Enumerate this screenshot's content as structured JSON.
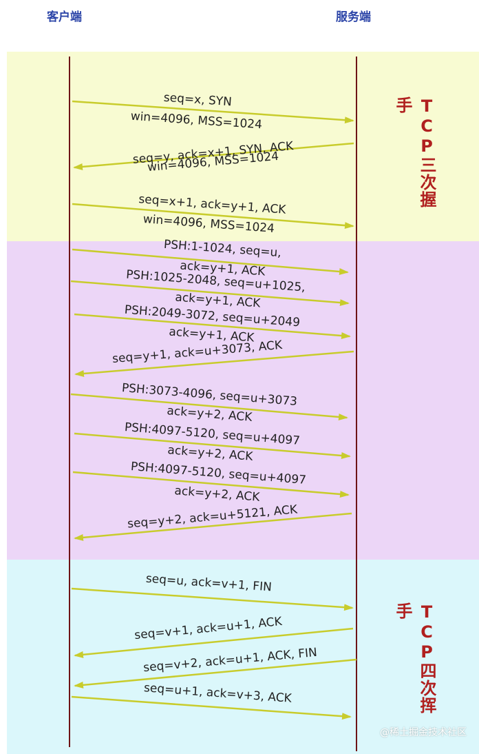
{
  "header": {
    "client_label": "客户端",
    "server_label": "服务端"
  },
  "colors": {
    "header_text": "#2c45a8",
    "title_text": "#b0201f",
    "lifeline": "#6e1416",
    "arrow": "#c8cc2c",
    "section_handshake": "#f8fbd2",
    "section_data": "#ecd6f7",
    "section_teardown": "#dbf7fb"
  },
  "sections": [
    {
      "id": "handshake",
      "title": "TCP三次握手"
    },
    {
      "id": "data",
      "title": ""
    },
    {
      "id": "teardown",
      "title": "TCP四次挥手"
    }
  ],
  "messages": [
    {
      "direction": "right",
      "lines": [
        "seq=x, SYN",
        "win=4096, MSS=1024"
      ]
    },
    {
      "direction": "left",
      "lines": [
        "seq=y, ack=x+1, SYN, ACK",
        "win=4096, MSS=1024"
      ]
    },
    {
      "direction": "right",
      "lines": [
        "seq=x+1, ack=y+1, ACK",
        "win=4096, MSS=1024"
      ]
    },
    {
      "direction": "right",
      "lines": [
        "PSH:1-1024, seq=u,",
        "ack=y+1, ACK"
      ]
    },
    {
      "direction": "right",
      "lines": [
        "PSH:1025-2048, seq=u+1025,",
        "ack=y+1, ACK"
      ]
    },
    {
      "direction": "right",
      "lines": [
        "PSH:2049-3072, seq=u+2049",
        "ack=y+1, ACK"
      ]
    },
    {
      "direction": "left",
      "lines": [
        "seq=y+1, ack=u+3073, ACK"
      ]
    },
    {
      "direction": "right",
      "lines": [
        "PSH:3073-4096, seq=u+3073",
        "ack=y+2, ACK"
      ]
    },
    {
      "direction": "right",
      "lines": [
        "PSH:4097-5120, seq=u+4097",
        "ack=y+2, ACK"
      ]
    },
    {
      "direction": "right",
      "lines": [
        "PSH:4097-5120, seq=u+4097",
        "ack=y+2, ACK"
      ]
    },
    {
      "direction": "left",
      "lines": [
        "seq=y+2, ack=u+5121, ACK"
      ]
    },
    {
      "direction": "right",
      "lines": [
        "seq=u, ack=v+1, FIN"
      ]
    },
    {
      "direction": "left",
      "lines": [
        "seq=v+1, ack=u+1, ACK"
      ]
    },
    {
      "direction": "left",
      "lines": [
        "seq=v+2, ack=u+1, ACK, FIN"
      ]
    },
    {
      "direction": "right",
      "lines": [
        "seq=u+1, ack=v+3, ACK"
      ]
    }
  ],
  "watermark": "@稀土掘金技术社区"
}
